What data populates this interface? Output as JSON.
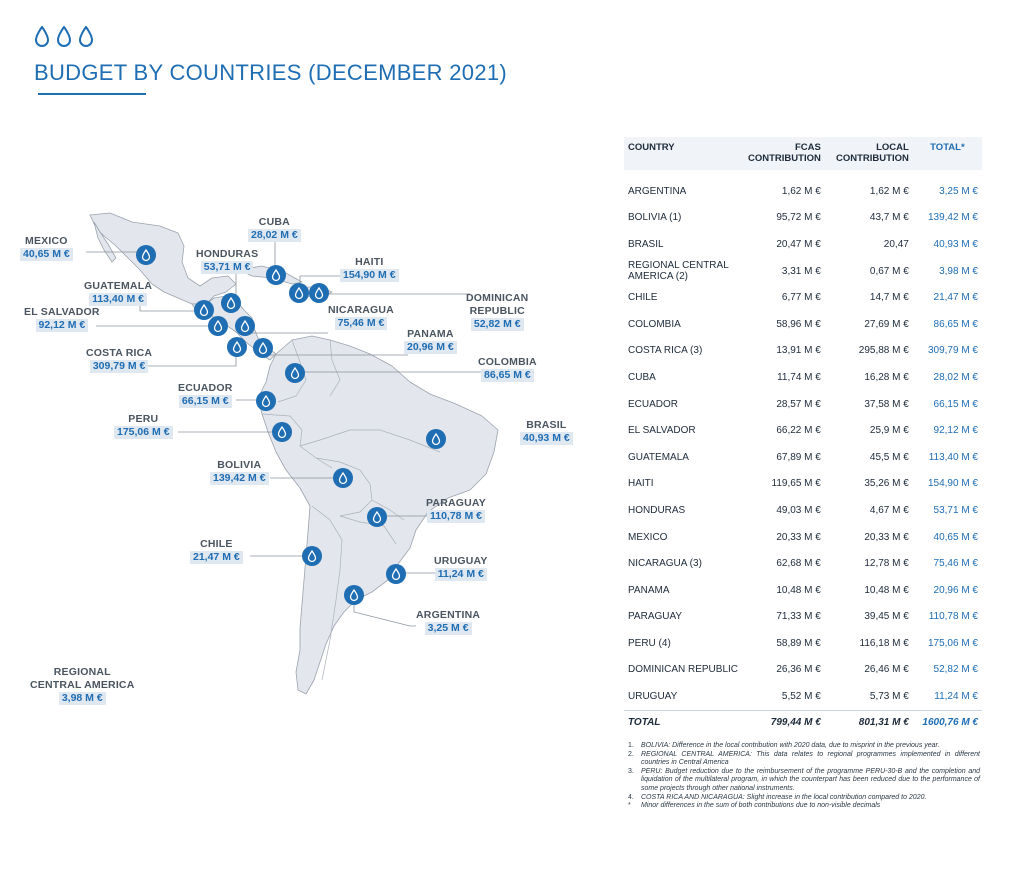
{
  "title": "BUDGET BY COUNTRIES (DECEMBER 2021)",
  "accent_color": "#1f6db3",
  "header_icon": "three-water-drops-icon",
  "map": {
    "marker_icon": "water-drop-marker-icon",
    "labels": [
      {
        "name": "MEXICO",
        "value": "40,65 M €"
      },
      {
        "name": "CUBA",
        "value": "28,02 M €"
      },
      {
        "name": "HONDURAS",
        "value": "53,71 M €"
      },
      {
        "name": "HAITI",
        "value": "154,90 M €"
      },
      {
        "name": "DOMINICAN\nREPUBLIC",
        "value": "52,82 M €"
      },
      {
        "name": "GUATEMALA",
        "value": "113,40 M €"
      },
      {
        "name": "EL SALVADOR",
        "value": "92,12 M €"
      },
      {
        "name": "NICARAGUA",
        "value": "75,46 M €"
      },
      {
        "name": "PANAMA",
        "value": "20,96 M €"
      },
      {
        "name": "COSTA RICA",
        "value": "309,79 M €"
      },
      {
        "name": "COLOMBIA",
        "value": "86,65 M €"
      },
      {
        "name": "ECUADOR",
        "value": "66,15 M €"
      },
      {
        "name": "PERU",
        "value": "175,06 M €"
      },
      {
        "name": "BRASIL",
        "value": "40,93 M €"
      },
      {
        "name": "BOLIVIA",
        "value": "139,42 M €"
      },
      {
        "name": "PARAGUAY",
        "value": "110,78 M €"
      },
      {
        "name": "CHILE",
        "value": "21,47 M €"
      },
      {
        "name": "URUGUAY",
        "value": "11,24 M €"
      },
      {
        "name": "ARGENTINA",
        "value": "3,25 M €"
      },
      {
        "name": "REGIONAL\nCENTRAL AMERICA",
        "value": "3,98 M €"
      }
    ]
  },
  "table": {
    "headers": [
      "COUNTRY",
      "FCAS\nCONTRIBUTION",
      "LOCAL\nCONTRIBUTION",
      "TOTAL*"
    ],
    "rows": [
      [
        "ARGENTINA",
        "1,62 M €",
        "1,62 M €",
        "3,25 M €"
      ],
      [
        "BOLIVIA (1)",
        "95,72 M €",
        "43,7 M €",
        "139,42 M €"
      ],
      [
        "BRASIL",
        "20,47 M €",
        "20,47",
        "40,93 M €"
      ],
      [
        "REGIONAL CENTRAL\nAMERICA (2)",
        "3,31 M €",
        "0,67 M €",
        "3,98 M €"
      ],
      [
        "CHILE",
        "6,77 M €",
        "14,7 M €",
        "21,47 M €"
      ],
      [
        "COLOMBIA",
        "58,96 M €",
        "27,69 M €",
        "86,65 M €"
      ],
      [
        "COSTA RICA (3)",
        "13,91 M €",
        "295,88 M €",
        "309,79 M €"
      ],
      [
        "CUBA",
        "11,74 M €",
        "16,28 M €",
        "28,02 M €"
      ],
      [
        "ECUADOR",
        "28,57 M €",
        "37,58 M €",
        "66,15 M €"
      ],
      [
        "EL SALVADOR",
        "66,22 M €",
        "25,9 M €",
        "92,12 M €"
      ],
      [
        "GUATEMALA",
        "67,89 M €",
        "45,5 M €",
        "113,40 M €"
      ],
      [
        "HAITI",
        "119,65 M €",
        "35,26 M €",
        "154,90 M €"
      ],
      [
        "HONDURAS",
        "49,03 M €",
        "4,67 M €",
        "53,71 M €"
      ],
      [
        "MEXICO",
        "20,33 M €",
        "20,33 M €",
        "40,65 M €"
      ],
      [
        "NICARAGUA (3)",
        "62,68 M €",
        "12,78 M €",
        "75,46 M €"
      ],
      [
        "PANAMA",
        "10,48 M €",
        "10,48 M €",
        "20,96 M €"
      ],
      [
        "PARAGUAY",
        "71,33 M €",
        "39,45 M €",
        "110,78 M €"
      ],
      [
        "PERU  (4)",
        "58,89 M €",
        "116,18 M €",
        "175,06 M €"
      ],
      [
        "DOMINICAN REPUBLIC",
        "26,36 M €",
        "26,46 M €",
        "52,82 M €"
      ],
      [
        "URUGUAY",
        "5,52 M €",
        "5,73 M €",
        "11,24 M €"
      ]
    ],
    "total": [
      "TOTAL",
      "799,44 M €",
      "801,31 M €",
      "1600,76 M €"
    ]
  },
  "notes": [
    {
      "n": "1.",
      "text": "BOLIVIA: Difference in the local contribution with 2020 data, due to misprint in the previous year."
    },
    {
      "n": "2.",
      "text": "REGIONAL CENTRAL AMERICA: This data relates to regional programmes implemented in different countries in Central America"
    },
    {
      "n": "3.",
      "text": "PERU: Budget reduction due to the reimbursement of the programme PERU-30-B and the completion and liquidation of the multilateral program, in which the counterpart has been reduced due to the performance of some projects through other national instruments."
    },
    {
      "n": "4.",
      "text": "COSTA RICA AND NICARAGUA: Slight increase in the local contribution compared to 2020."
    },
    {
      "n": "*",
      "text": "Minor differences in the sum of both contributions due to non-visible decimals"
    }
  ]
}
